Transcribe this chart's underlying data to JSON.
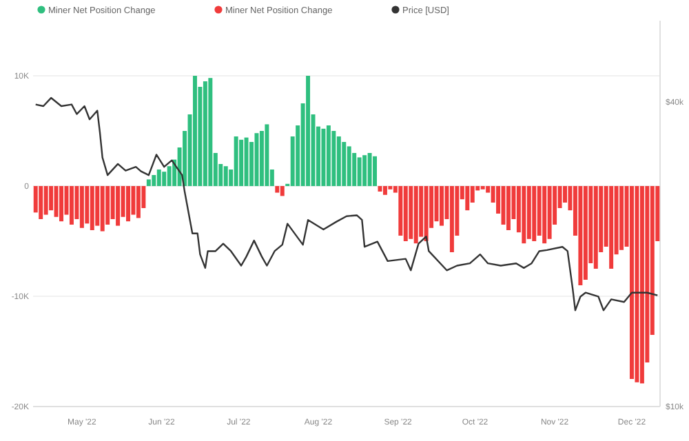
{
  "chart_data": {
    "type": "bar",
    "legend": "top left",
    "grid": "y",
    "log": "y2",
    "xlim": [
      "2022-04-12",
      "2022-12-12"
    ],
    "xticks": [
      {
        "value": "2022-05-01",
        "label": "May '22"
      },
      {
        "value": "2022-06-01",
        "label": "Jun '22"
      },
      {
        "value": "2022-07-01",
        "label": "Jul '22"
      },
      {
        "value": "2022-08-01",
        "label": "Aug '22"
      },
      {
        "value": "2022-09-01",
        "label": "Sep '22"
      },
      {
        "value": "2022-10-01",
        "label": "Oct '22"
      },
      {
        "value": "2022-11-01",
        "label": "Nov '22"
      },
      {
        "value": "2022-12-01",
        "label": "Dec '22"
      }
    ],
    "ylim": [
      -20000,
      15000
    ],
    "yticks": [
      {
        "value": 10000,
        "label": "10K"
      },
      0,
      {
        "value": -10000,
        "label": "-10K"
      },
      {
        "value": -20000,
        "label": "-20K"
      }
    ],
    "y2lim": [
      10000,
      58000
    ],
    "y2ticks": [
      {
        "value": 40000,
        "label": "$40k"
      },
      {
        "value": 10000,
        "label": "$10k"
      }
    ],
    "series": [
      {
        "name": "Miner Net Position Change",
        "color": "#2fbf7f",
        "x": [
          "2022-05-27",
          "2022-05-29",
          "2022-05-31",
          "2022-06-02",
          "2022-06-04",
          "2022-06-06",
          "2022-06-08",
          "2022-06-10",
          "2022-06-12",
          "2022-06-14",
          "2022-06-16",
          "2022-06-18",
          "2022-06-20",
          "2022-06-22",
          "2022-06-24",
          "2022-06-26",
          "2022-06-28",
          "2022-06-30",
          "2022-07-02",
          "2022-07-04",
          "2022-07-06",
          "2022-07-08",
          "2022-07-10",
          "2022-07-12",
          "2022-07-14",
          "2022-07-20",
          "2022-07-22",
          "2022-07-24",
          "2022-07-26",
          "2022-07-28",
          "2022-07-30",
          "2022-08-01",
          "2022-08-03",
          "2022-08-05",
          "2022-08-07",
          "2022-08-09",
          "2022-08-11",
          "2022-08-13",
          "2022-08-15",
          "2022-08-17",
          "2022-08-19",
          "2022-08-21",
          "2022-08-23"
        ],
        "values": [
          600,
          1000,
          1500,
          1300,
          1800,
          2400,
          3500,
          5000,
          6500,
          10000,
          9000,
          9500,
          9800,
          3000,
          2000,
          1800,
          1500,
          4500,
          4200,
          4400,
          4000,
          4800,
          5000,
          5600,
          1500,
          200,
          4500,
          5500,
          7500,
          10000,
          6500,
          5400,
          5200,
          5500,
          5000,
          4500,
          4000,
          3600,
          3000,
          2600,
          2800,
          3000,
          2700
        ]
      },
      {
        "name": "Miner Net Position Change",
        "color": "#f03b3b",
        "x": [
          "2022-04-13",
          "2022-04-15",
          "2022-04-17",
          "2022-04-19",
          "2022-04-21",
          "2022-04-23",
          "2022-04-25",
          "2022-04-27",
          "2022-04-29",
          "2022-05-01",
          "2022-05-03",
          "2022-05-05",
          "2022-05-07",
          "2022-05-09",
          "2022-05-11",
          "2022-05-13",
          "2022-05-15",
          "2022-05-17",
          "2022-05-19",
          "2022-05-21",
          "2022-05-23",
          "2022-05-25",
          "2022-07-16",
          "2022-07-18",
          "2022-08-25",
          "2022-08-27",
          "2022-08-29",
          "2022-08-31",
          "2022-09-02",
          "2022-09-04",
          "2022-09-06",
          "2022-09-08",
          "2022-09-10",
          "2022-09-12",
          "2022-09-14",
          "2022-09-16",
          "2022-09-18",
          "2022-09-20",
          "2022-09-22",
          "2022-09-24",
          "2022-09-26",
          "2022-09-28",
          "2022-09-30",
          "2022-10-02",
          "2022-10-04",
          "2022-10-06",
          "2022-10-08",
          "2022-10-10",
          "2022-10-12",
          "2022-10-14",
          "2022-10-16",
          "2022-10-18",
          "2022-10-20",
          "2022-10-22",
          "2022-10-24",
          "2022-10-26",
          "2022-10-28",
          "2022-10-30",
          "2022-11-01",
          "2022-11-03",
          "2022-11-05",
          "2022-11-07",
          "2022-11-09",
          "2022-11-11",
          "2022-11-13",
          "2022-11-15",
          "2022-11-17",
          "2022-11-19",
          "2022-11-21",
          "2022-11-23",
          "2022-11-25",
          "2022-11-27",
          "2022-11-29",
          "2022-12-01",
          "2022-12-03",
          "2022-12-05",
          "2022-12-07",
          "2022-12-09",
          "2022-12-11"
        ],
        "values": [
          -2400,
          -3000,
          -2600,
          -2200,
          -2800,
          -3200,
          -2600,
          -3500,
          -3000,
          -3800,
          -3400,
          -4000,
          -3600,
          -4100,
          -3500,
          -3000,
          -3600,
          -2800,
          -3200,
          -2600,
          -2900,
          -2000,
          -600,
          -900,
          -500,
          -800,
          -300,
          -600,
          -4500,
          -5000,
          -4800,
          -5200,
          -4600,
          -5000,
          -3800,
          -3200,
          -3600,
          -3000,
          -6000,
          -4500,
          -1200,
          -2200,
          -1500,
          -400,
          -300,
          -600,
          -1500,
          -2500,
          -3500,
          -4000,
          -3000,
          -4200,
          -5200,
          -4800,
          -5000,
          -4500,
          -5200,
          -4800,
          -3500,
          -2000,
          -1500,
          -2200,
          -4500,
          -9000,
          -8500,
          -7000,
          -7500,
          -6000,
          -5500,
          -7500,
          -6200,
          -5800,
          -5500,
          -17500,
          -17800,
          -17900,
          -16000,
          -13500,
          -5000
        ]
      },
      {
        "name": "Price [USD]",
        "color": "#333333",
        "type": "line",
        "axis": "y2",
        "x": [
          "2022-04-13",
          "2022-04-16",
          "2022-04-19",
          "2022-04-23",
          "2022-04-27",
          "2022-04-29",
          "2022-05-02",
          "2022-05-04",
          "2022-05-07",
          "2022-05-08",
          "2022-05-09",
          "2022-05-11",
          "2022-05-15",
          "2022-05-18",
          "2022-05-22",
          "2022-05-24",
          "2022-05-27",
          "2022-05-30",
          "2022-06-02",
          "2022-06-05",
          "2022-06-09",
          "2022-06-10",
          "2022-06-13",
          "2022-06-15",
          "2022-06-16",
          "2022-06-18",
          "2022-06-19",
          "2022-06-22",
          "2022-06-25",
          "2022-06-28",
          "2022-07-02",
          "2022-07-04",
          "2022-07-07",
          "2022-07-10",
          "2022-07-12",
          "2022-07-15",
          "2022-07-18",
          "2022-07-20",
          "2022-07-26",
          "2022-07-28",
          "2022-08-03",
          "2022-08-08",
          "2022-08-12",
          "2022-08-16",
          "2022-08-18",
          "2022-08-19",
          "2022-08-24",
          "2022-08-28",
          "2022-09-04",
          "2022-09-06",
          "2022-09-09",
          "2022-09-12",
          "2022-09-13",
          "2022-09-20",
          "2022-09-24",
          "2022-09-29",
          "2022-10-03",
          "2022-10-06",
          "2022-10-11",
          "2022-10-17",
          "2022-10-20",
          "2022-10-23",
          "2022-10-26",
          "2022-10-29",
          "2022-11-04",
          "2022-11-06",
          "2022-11-08",
          "2022-11-09",
          "2022-11-11",
          "2022-11-13",
          "2022-11-18",
          "2022-11-20",
          "2022-11-23",
          "2022-11-28",
          "2022-12-01",
          "2022-12-07",
          "2022-12-11"
        ],
        "values": [
          39600,
          39300,
          40800,
          39300,
          39600,
          37900,
          39300,
          37000,
          38500,
          34900,
          31100,
          28700,
          30200,
          29300,
          29800,
          29200,
          28700,
          31500,
          29800,
          30700,
          28700,
          26600,
          22000,
          22000,
          20000,
          18800,
          20300,
          20300,
          21000,
          20300,
          19000,
          19800,
          21300,
          19800,
          19000,
          20300,
          20900,
          23000,
          20900,
          23400,
          22400,
          23200,
          23800,
          23900,
          23400,
          20700,
          21200,
          19400,
          19600,
          18600,
          21000,
          21700,
          20300,
          18600,
          19000,
          19200,
          20000,
          19200,
          19000,
          19200,
          18800,
          19200,
          20300,
          20400,
          20700,
          20300,
          17100,
          15500,
          16500,
          16800,
          16500,
          15500,
          16300,
          16100,
          16800,
          16800,
          16600
        ]
      }
    ]
  }
}
